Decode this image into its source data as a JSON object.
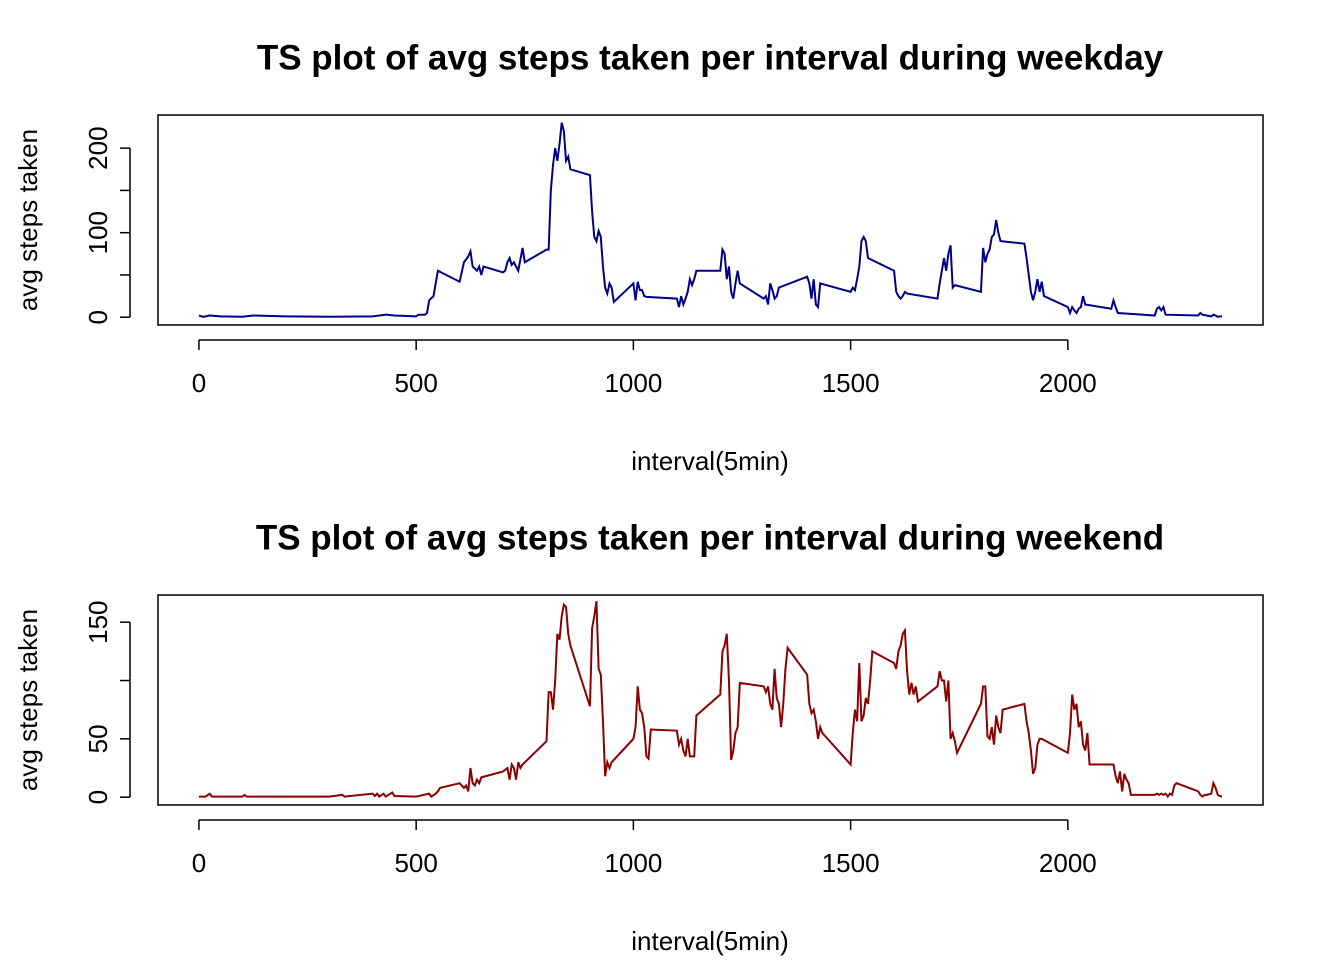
{
  "chart_data": [
    {
      "type": "line",
      "title": "TS plot of avg steps taken per interval during weekday",
      "xlabel": "interval(5min)",
      "ylabel": "avg steps taken",
      "color": "#00008b",
      "x": [
        0,
        10,
        25,
        50,
        100,
        125,
        200,
        300,
        400,
        430,
        450,
        500,
        505,
        520,
        525,
        530,
        540,
        550,
        600,
        610,
        620,
        625,
        630,
        640,
        645,
        650,
        655,
        700,
        705,
        710,
        715,
        720,
        725,
        730,
        735,
        745,
        750,
        800,
        805,
        810,
        815,
        820,
        825,
        830,
        835,
        840,
        845,
        850,
        855,
        900,
        905,
        910,
        915,
        920,
        925,
        930,
        935,
        940,
        945,
        950,
        955,
        1000,
        1005,
        1010,
        1015,
        1020,
        1025,
        1030,
        1100,
        1105,
        1110,
        1115,
        1120,
        1125,
        1130,
        1135,
        1140,
        1145,
        1200,
        1205,
        1210,
        1215,
        1220,
        1225,
        1230,
        1235,
        1240,
        1245,
        1300,
        1305,
        1310,
        1315,
        1320,
        1325,
        1330,
        1335,
        1400,
        1405,
        1410,
        1415,
        1420,
        1425,
        1430,
        1500,
        1505,
        1510,
        1515,
        1520,
        1525,
        1530,
        1535,
        1540,
        1600,
        1605,
        1610,
        1615,
        1620,
        1625,
        1630,
        1700,
        1705,
        1710,
        1715,
        1720,
        1725,
        1730,
        1735,
        1740,
        1800,
        1805,
        1810,
        1815,
        1820,
        1825,
        1830,
        1835,
        1840,
        1845,
        1900,
        1905,
        1910,
        1915,
        1920,
        1925,
        1930,
        1935,
        1940,
        1945,
        2000,
        2005,
        2010,
        2015,
        2020,
        2025,
        2030,
        2035,
        2040,
        2100,
        2105,
        2110,
        2115,
        2200,
        2205,
        2210,
        2215,
        2220,
        2225,
        2300,
        2305,
        2310,
        2330,
        2335,
        2340,
        2345,
        2350,
        2355
      ],
      "values": [
        2,
        0.5,
        2,
        1,
        0.5,
        2,
        1,
        0.5,
        1,
        3,
        2,
        1,
        3,
        3,
        5,
        20,
        25,
        55,
        42,
        65,
        72,
        78,
        60,
        55,
        60,
        50,
        60,
        53,
        55,
        65,
        70,
        62,
        65,
        60,
        55,
        82,
        65,
        80,
        80,
        150,
        180,
        200,
        185,
        205,
        230,
        220,
        185,
        190,
        175,
        168,
        125,
        95,
        90,
        102,
        95,
        60,
        35,
        28,
        40,
        35,
        18,
        40,
        20,
        42,
        32,
        32,
        25,
        24,
        22,
        12,
        25,
        15,
        22,
        30,
        45,
        38,
        45,
        55,
        55,
        80,
        75,
        45,
        60,
        30,
        22,
        40,
        55,
        40,
        22,
        25,
        15,
        40,
        32,
        22,
        25,
        35,
        48,
        40,
        22,
        45,
        15,
        12,
        40,
        30,
        35,
        32,
        45,
        60,
        90,
        95,
        90,
        70,
        55,
        30,
        25,
        22,
        25,
        30,
        28,
        22,
        40,
        55,
        70,
        55,
        75,
        85,
        35,
        38,
        30,
        82,
        65,
        75,
        80,
        95,
        98,
        115,
        100,
        90,
        87,
        70,
        50,
        30,
        20,
        30,
        45,
        30,
        42,
        25,
        12,
        5,
        12,
        8,
        5,
        10,
        12,
        25,
        15,
        10,
        20,
        12,
        5,
        2,
        10,
        12,
        8,
        12,
        3,
        2,
        5,
        3,
        1,
        3,
        2,
        0.5,
        1,
        1
      ],
      "xlim": [
        -94.2,
        2449.2
      ],
      "xticks": [
        0,
        500,
        1000,
        1500,
        2000
      ],
      "ylim": [
        -9.2,
        239.2
      ],
      "yticks": [
        0,
        100,
        200
      ],
      "yminor_ticks": [
        50,
        150
      ]
    },
    {
      "type": "line",
      "title": "TS plot of avg steps taken per interval during weekend",
      "xlabel": "interval(5min)",
      "ylabel": "avg steps taken",
      "color": "#8b0000",
      "x": [
        0,
        15,
        25,
        30,
        100,
        105,
        110,
        200,
        300,
        330,
        335,
        400,
        405,
        410,
        415,
        425,
        430,
        445,
        450,
        500,
        530,
        535,
        545,
        550,
        555,
        600,
        610,
        615,
        620,
        625,
        630,
        635,
        640,
        645,
        650,
        700,
        710,
        715,
        720,
        725,
        730,
        735,
        740,
        745,
        800,
        805,
        810,
        815,
        820,
        825,
        830,
        835,
        840,
        845,
        850,
        855,
        900,
        905,
        910,
        915,
        920,
        925,
        930,
        935,
        940,
        945,
        950,
        1000,
        1005,
        1010,
        1015,
        1020,
        1025,
        1030,
        1035,
        1040,
        1100,
        1105,
        1110,
        1115,
        1120,
        1125,
        1130,
        1140,
        1145,
        1200,
        1205,
        1210,
        1215,
        1220,
        1225,
        1230,
        1235,
        1240,
        1245,
        1300,
        1305,
        1310,
        1315,
        1320,
        1325,
        1330,
        1335,
        1340,
        1345,
        1350,
        1355,
        1400,
        1405,
        1410,
        1415,
        1420,
        1425,
        1430,
        1435,
        1500,
        1505,
        1510,
        1515,
        1520,
        1525,
        1530,
        1535,
        1540,
        1545,
        1550,
        1600,
        1605,
        1610,
        1615,
        1620,
        1625,
        1630,
        1635,
        1640,
        1645,
        1650,
        1655,
        1700,
        1705,
        1710,
        1715,
        1720,
        1725,
        1730,
        1735,
        1740,
        1745,
        1800,
        1805,
        1810,
        1815,
        1820,
        1825,
        1830,
        1835,
        1840,
        1845,
        1850,
        1900,
        1905,
        1910,
        1915,
        1920,
        1925,
        1930,
        1935,
        1940,
        2000,
        2005,
        2010,
        2015,
        2020,
        2025,
        2030,
        2035,
        2040,
        2045,
        2050,
        2100,
        2105,
        2110,
        2115,
        2120,
        2125,
        2130,
        2135,
        2140,
        2145,
        2200,
        2205,
        2210,
        2215,
        2220,
        2225,
        2230,
        2235,
        2240,
        2245,
        2250,
        2300,
        2305,
        2310,
        2315,
        2320,
        2330,
        2335,
        2340,
        2345,
        2350,
        2355
      ],
      "values": [
        0.5,
        0.5,
        3,
        0.5,
        0.5,
        2,
        0.5,
        0.5,
        0.5,
        2,
        0.5,
        3,
        1,
        3,
        0.5,
        3,
        0.5,
        4,
        1,
        0.5,
        3,
        0.5,
        3,
        5,
        8,
        12,
        8,
        10,
        5,
        25,
        12,
        10,
        15,
        12,
        17,
        22,
        25,
        15,
        28,
        25,
        15,
        30,
        25,
        28,
        48,
        90,
        90,
        75,
        100,
        140,
        135,
        155,
        165,
        163,
        140,
        130,
        78,
        145,
        155,
        168,
        110,
        105,
        65,
        18,
        30,
        25,
        30,
        50,
        60,
        95,
        75,
        72,
        60,
        35,
        33,
        58,
        57,
        45,
        50,
        40,
        35,
        50,
        35,
        35,
        70,
        88,
        125,
        130,
        140,
        100,
        32,
        40,
        55,
        60,
        98,
        95,
        90,
        95,
        80,
        75,
        110,
        85,
        80,
        60,
        80,
        110,
        128,
        105,
        80,
        72,
        75,
        65,
        50,
        60,
        55,
        28,
        55,
        75,
        65,
        115,
        65,
        70,
        85,
        80,
        100,
        125,
        115,
        110,
        125,
        130,
        140,
        143,
        108,
        88,
        98,
        88,
        95,
        82,
        95,
        108,
        100,
        100,
        82,
        100,
        50,
        55,
        48,
        38,
        80,
        95,
        95,
        52,
        50,
        60,
        45,
        70,
        60,
        55,
        75,
        80,
        65,
        55,
        40,
        20,
        25,
        45,
        50,
        50,
        38,
        55,
        88,
        75,
        80,
        60,
        65,
        45,
        40,
        55,
        28,
        28,
        28,
        18,
        12,
        22,
        5,
        20,
        15,
        12,
        2,
        2,
        3,
        2,
        3,
        2,
        3,
        0.5,
        3,
        2,
        10,
        12,
        5,
        2,
        0.5,
        2,
        2,
        3,
        12,
        8,
        2,
        1,
        0.5
      ],
      "xlim": [
        -94.2,
        2449.2
      ],
      "xticks": [
        0,
        500,
        1000,
        1500,
        2000
      ],
      "ylim": [
        -6.7,
        173.3
      ],
      "yticks": [
        0,
        50,
        150
      ],
      "yminor_ticks": [
        100
      ]
    }
  ]
}
